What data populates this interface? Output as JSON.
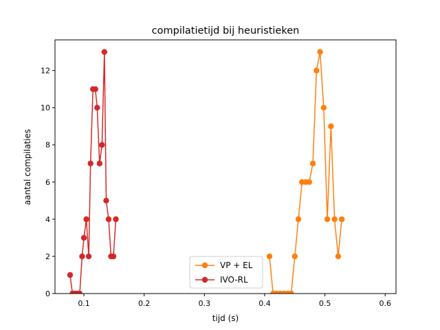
{
  "chart_data": {
    "type": "line",
    "title": "compilatietijd bij heuristieken",
    "xlabel": "tijd (s)",
    "ylabel": "aantal compilaties",
    "xlim": [
      0.052,
      0.618
    ],
    "ylim": [
      0,
      13.65
    ],
    "xticks": [
      0.1,
      0.2,
      0.3,
      0.4,
      0.5,
      0.6
    ],
    "xtick_labels": [
      "0.1",
      "0.2",
      "0.3",
      "0.4",
      "0.5",
      "0.6"
    ],
    "yticks": [
      0,
      2,
      4,
      6,
      8,
      10,
      12
    ],
    "ytick_labels": [
      "0",
      "2",
      "4",
      "6",
      "8",
      "10",
      "12"
    ],
    "grid": false,
    "legend_position": "lower-center",
    "series": [
      {
        "name": "VP + EL",
        "color": "#ff7f0e",
        "marker": "circle",
        "x": [
          0.408,
          0.414,
          0.42,
          0.426,
          0.432,
          0.438,
          0.444,
          0.45,
          0.456,
          0.462,
          0.468,
          0.474,
          0.48,
          0.486,
          0.492,
          0.498,
          0.504,
          0.51,
          0.516,
          0.522,
          0.528
        ],
        "y": [
          2,
          0,
          0,
          0,
          0,
          0,
          0,
          2,
          4,
          6,
          6,
          6,
          7,
          12,
          13,
          10,
          4,
          9,
          4,
          2,
          4
        ]
      },
      {
        "name": "IVO-RL",
        "color": "#d62728",
        "marker": "circle",
        "x": [
          0.077,
          0.081,
          0.085,
          0.089,
          0.093,
          0.097,
          0.1,
          0.104,
          0.108,
          0.111,
          0.115,
          0.119,
          0.122,
          0.126,
          0.13,
          0.134,
          0.137,
          0.141,
          0.145,
          0.149,
          0.153
        ],
        "y": [
          1,
          0,
          0,
          0,
          0,
          2,
          3,
          4,
          2,
          7,
          11,
          11,
          10,
          7,
          8,
          13,
          5,
          4,
          2,
          2,
          4
        ]
      }
    ]
  }
}
